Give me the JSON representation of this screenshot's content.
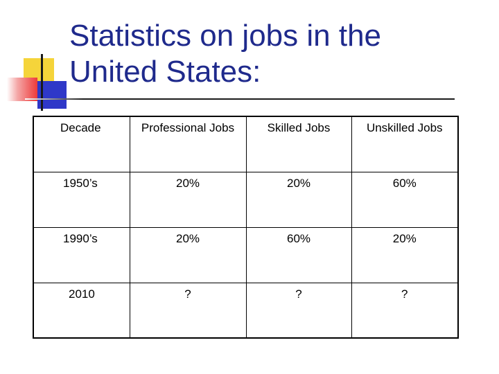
{
  "slide": {
    "title_line1": "Statistics on jobs in the",
    "title_line2": "United States:"
  },
  "table": {
    "headers": [
      "Decade",
      "Professional Jobs",
      "Skilled Jobs",
      "Unskilled Jobs"
    ],
    "rows": [
      [
        "1950’s",
        "20%",
        "20%",
        "60%"
      ],
      [
        "1990’s",
        "20%",
        "60%",
        "20%"
      ],
      [
        "2010",
        "?",
        "?",
        "?"
      ]
    ]
  },
  "colors": {
    "title": "#1f2a8c",
    "deco_yellow": "#f5d43a",
    "deco_red": "#ee3a3a",
    "deco_blue": "#2f38c8"
  }
}
